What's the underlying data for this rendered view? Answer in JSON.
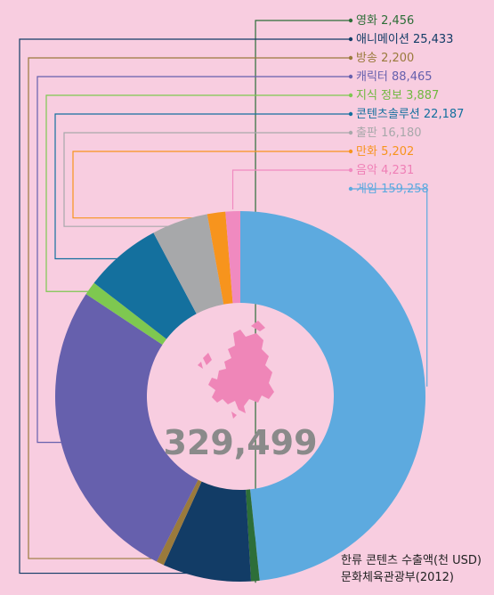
{
  "chart_data": {
    "type": "pie",
    "variant": "donut",
    "total_label": "329,499",
    "series": [
      {
        "name": "게임",
        "value_label": "159,258",
        "value": 159258,
        "color": "#5daadf"
      },
      {
        "name": "영화",
        "value_label": "2,456",
        "value": 2456,
        "color": "#2d6e38"
      },
      {
        "name": "애니메이션",
        "value_label": "25,433",
        "value": 25433,
        "color": "#123c66"
      },
      {
        "name": "방송",
        "value_label": "2,200",
        "value": 2200,
        "color": "#9a7a3c"
      },
      {
        "name": "캐릭터",
        "value_label": "88,465",
        "value": 88465,
        "color": "#6660ad"
      },
      {
        "name": "지식 정보",
        "value_label": "3,887",
        "value": 3887,
        "color": "#7ec850"
      },
      {
        "name": "콘텐츠솔루션",
        "value_label": "22,187",
        "value": 22187,
        "color": "#14709e"
      },
      {
        "name": "출판",
        "value_label": "16,180",
        "value": 16180,
        "color": "#a7a8aa"
      },
      {
        "name": "만화",
        "value_label": "5,202",
        "value": 5202,
        "color": "#f7941d"
      },
      {
        "name": "음악",
        "value_label": "4,231",
        "value": 4231,
        "color": "#f08ac0"
      }
    ],
    "legend_order": [
      "영화",
      "애니메이션",
      "방송",
      "캐릭터",
      "지식 정보",
      "콘텐츠솔루션",
      "출판",
      "만화",
      "음악",
      "게임"
    ],
    "legend_colors": {
      "영화": {
        "label": "#2d6e38",
        "value": "#2d6e38"
      },
      "애니메이션": {
        "label": "#123c66",
        "value": "#123c66"
      },
      "방송": {
        "label": "#9a7a3c",
        "value": "#9a7a3c"
      },
      "캐릭터": {
        "label": "#6660ad",
        "value": "#6660ad"
      },
      "지식 정보": {
        "label": "#6fb83f",
        "value": "#6fb83f"
      },
      "콘텐츠솔루션": {
        "label": "#14709e",
        "value": "#14709e"
      },
      "출판": {
        "label": "#a7a8aa",
        "value": "#a7a8aa"
      },
      "만화": {
        "label": "#f7941d",
        "value": "#f7941d"
      },
      "음악": {
        "label": "#ef7fb6",
        "value": "#ef7fb6"
      },
      "게임": {
        "label": "#5daadf",
        "value": "#5daadf"
      }
    },
    "center_icon": "europe-map-icon",
    "icon_color": "#ef86b8",
    "total_color": "#8a8a8a"
  },
  "caption": {
    "line1": "한류 콘텐츠 수출액(천 USD)",
    "line2": "문화체육관광부(2012)"
  }
}
